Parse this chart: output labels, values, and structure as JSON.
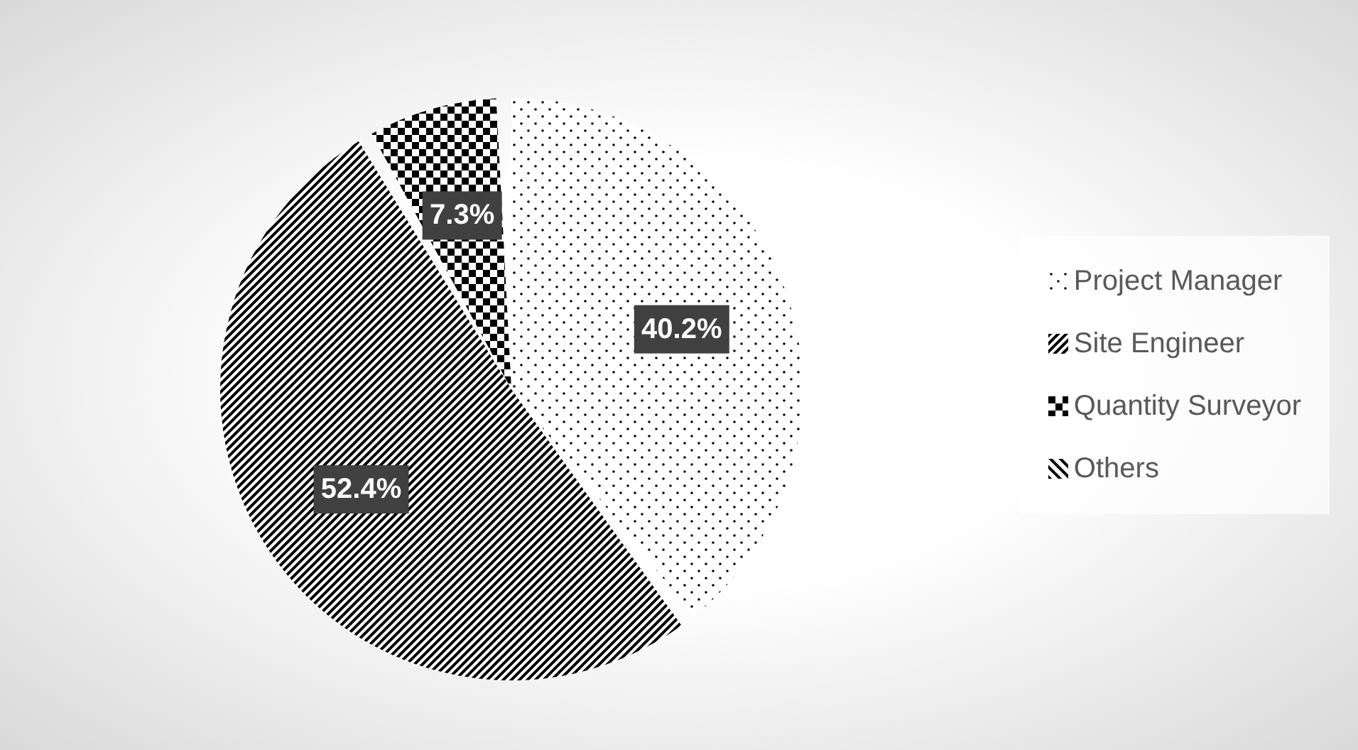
{
  "chart_data": {
    "type": "pie",
    "categories": [
      "Project Manager",
      "Site Engineer",
      "Quantity Surveyor",
      "Others"
    ],
    "values": [
      40.2,
      52.4,
      7.3,
      0
    ],
    "colors": [
      "#000000",
      "#000000",
      "#000000",
      "#000000"
    ],
    "value_labels": [
      "40.2%",
      "52.4%",
      "7.3%",
      null
    ],
    "legend": "right"
  }
}
